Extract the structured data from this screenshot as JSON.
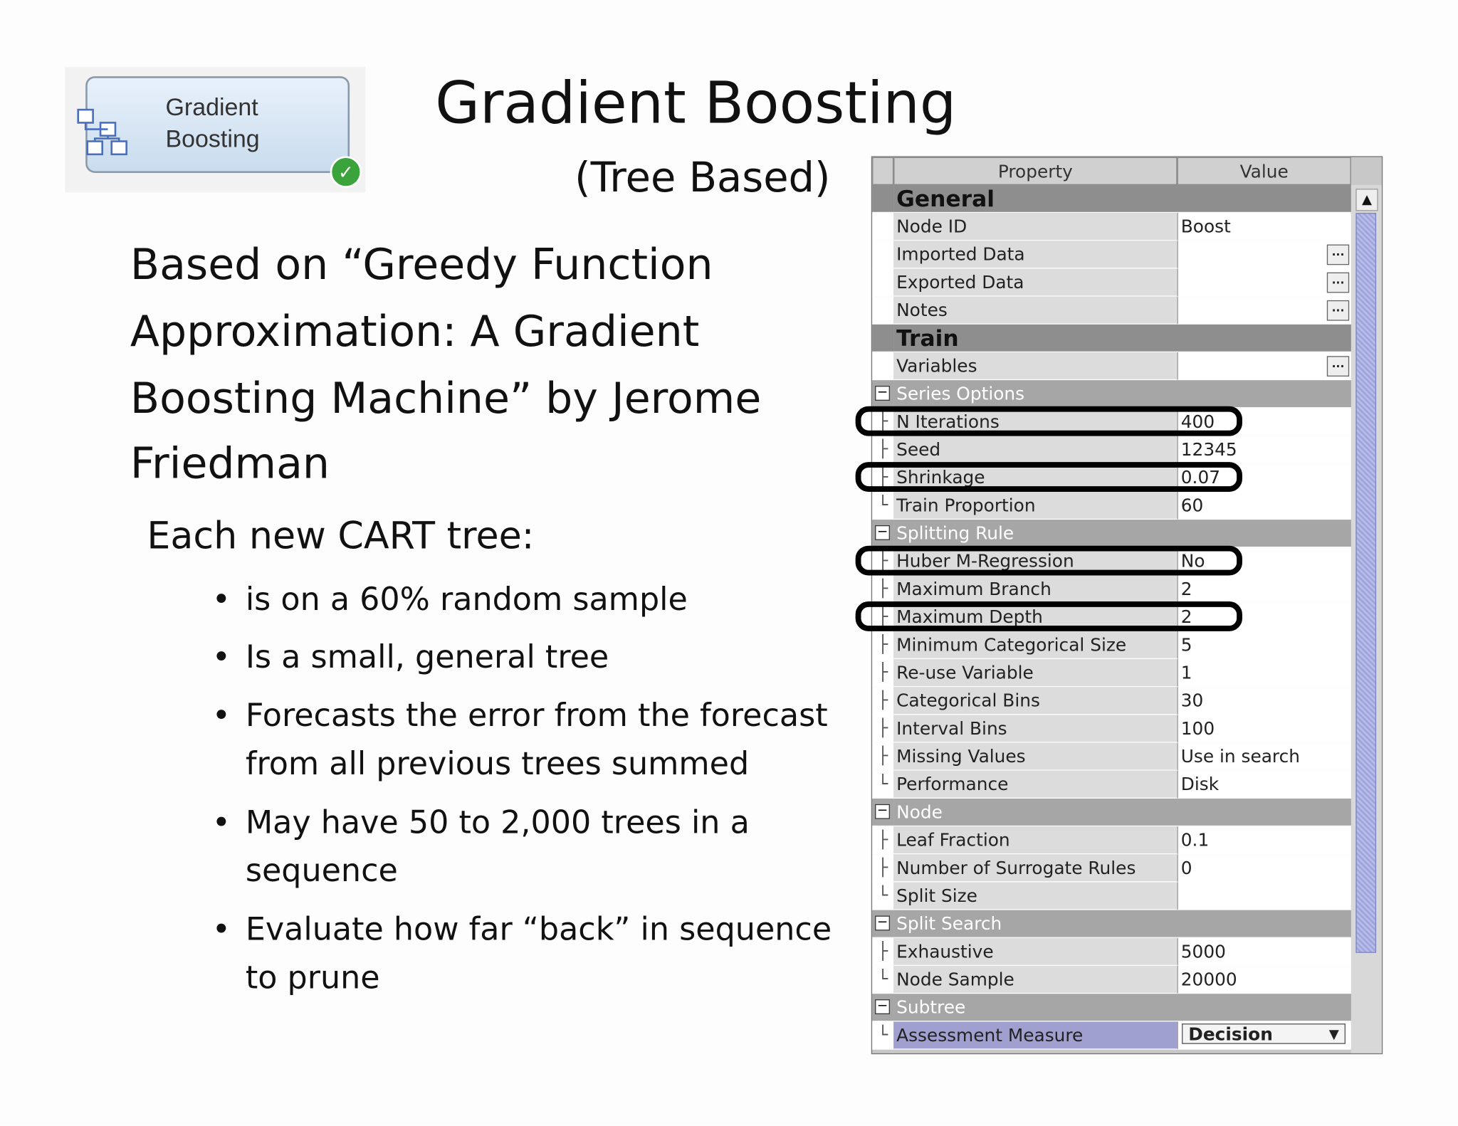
{
  "node_icon": {
    "label_lines": [
      "Gradient",
      "Boosting"
    ]
  },
  "title": "Gradient Boosting",
  "subtitle": "(Tree Based)",
  "intro_lines": [
    "Based on “Greedy Function",
    "Approximation:   A Gradient",
    "Boosting Machine” by Jerome",
    "Friedman"
  ],
  "lead": "Each new CART tree:",
  "bullets": [
    {
      "lines": [
        "is on a 60% random sample"
      ]
    },
    {
      "lines": [
        "Is a small, general tree"
      ]
    },
    {
      "lines": [
        "Forecasts the error from the forecast",
        "from all previous trees summed"
      ]
    },
    {
      "lines": [
        "May have 50 to 2,000 trees in a",
        "sequence"
      ]
    },
    {
      "lines": [
        "Evaluate how far “back” in sequence",
        "to prune"
      ]
    }
  ],
  "property_table": {
    "headers": [
      "Property",
      "Value"
    ],
    "rows": [
      {
        "kind": "section",
        "label": "General"
      },
      {
        "kind": "item",
        "label": "Node ID",
        "value": "Boost"
      },
      {
        "kind": "item",
        "label": "Imported Data",
        "button": "..."
      },
      {
        "kind": "item",
        "label": "Exported Data",
        "button": "..."
      },
      {
        "kind": "item",
        "label": "Notes",
        "button": "..."
      },
      {
        "kind": "section",
        "label": "Train"
      },
      {
        "kind": "item",
        "label": "Variables",
        "button": "..."
      },
      {
        "kind": "group",
        "label": "Series Options"
      },
      {
        "kind": "item",
        "label": "N Iterations",
        "value": "400",
        "highlighted": true
      },
      {
        "kind": "item",
        "label": "Seed",
        "value": "12345"
      },
      {
        "kind": "item",
        "label": "Shrinkage",
        "value": "0.07",
        "highlighted": true
      },
      {
        "kind": "item",
        "label": "Train Proportion",
        "value": "60"
      },
      {
        "kind": "group",
        "label": "Splitting Rule"
      },
      {
        "kind": "item",
        "label": "Huber M-Regression",
        "value": "No",
        "highlighted": true
      },
      {
        "kind": "item",
        "label": "Maximum Branch",
        "value": "2"
      },
      {
        "kind": "item",
        "label": "Maximum Depth",
        "value": "2",
        "highlighted": true
      },
      {
        "kind": "item",
        "label": "Minimum Categorical Size",
        "value": "5"
      },
      {
        "kind": "item",
        "label": "Re-use Variable",
        "value": "1"
      },
      {
        "kind": "item",
        "label": "Categorical Bins",
        "value": "30"
      },
      {
        "kind": "item",
        "label": "Interval Bins",
        "value": "100"
      },
      {
        "kind": "item",
        "label": "Missing Values",
        "value": "Use in search"
      },
      {
        "kind": "item",
        "label": "Performance",
        "value": "Disk"
      },
      {
        "kind": "group",
        "label": "Node"
      },
      {
        "kind": "item",
        "label": "Leaf Fraction",
        "value": "0.1"
      },
      {
        "kind": "item",
        "label": "Number of Surrogate Rules",
        "value": "0"
      },
      {
        "kind": "item",
        "label": "Split Size"
      },
      {
        "kind": "group",
        "label": "Split Search"
      },
      {
        "kind": "item",
        "label": "Exhaustive",
        "value": "5000"
      },
      {
        "kind": "item",
        "label": "Node Sample",
        "value": "20000"
      },
      {
        "kind": "group",
        "label": "Subtree"
      },
      {
        "kind": "item",
        "label": "Assessment Measure",
        "value": "Decision",
        "dropdown": true
      }
    ]
  }
}
